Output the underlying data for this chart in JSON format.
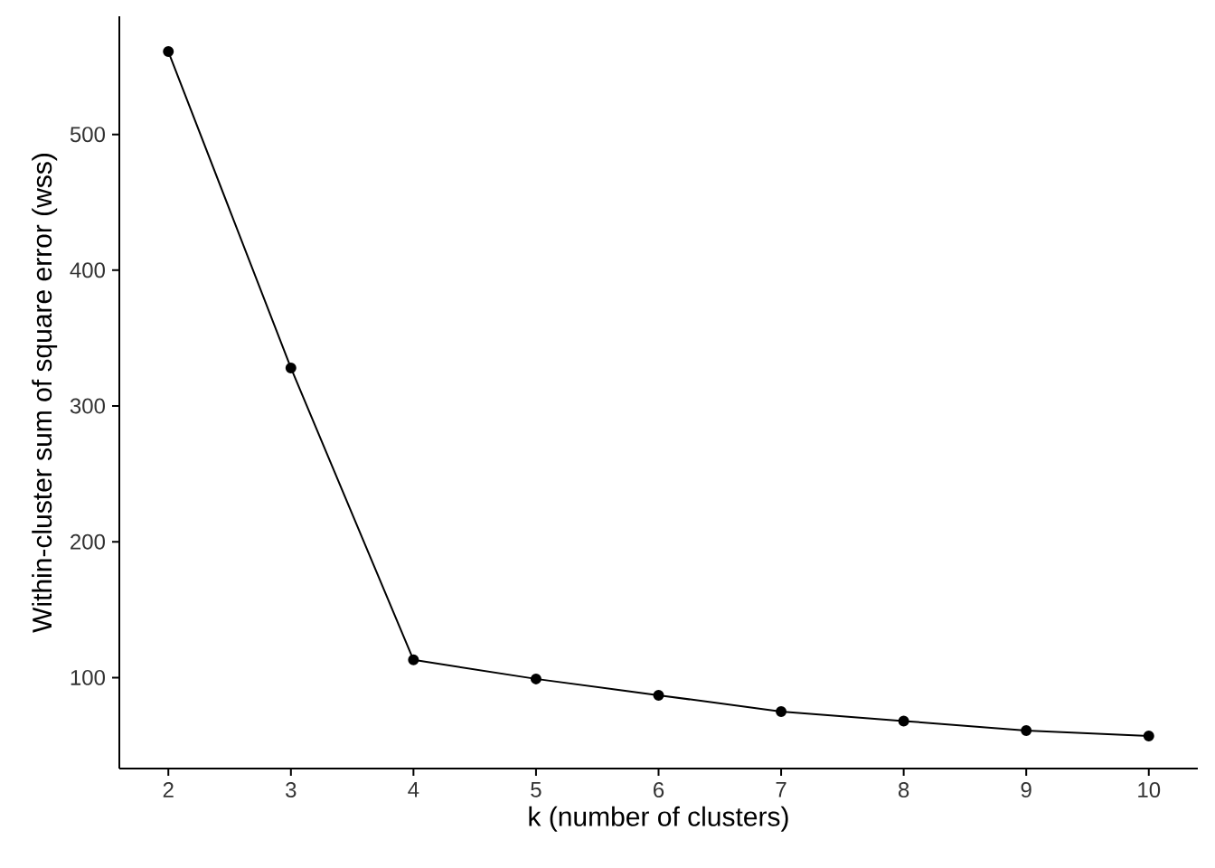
{
  "chart_data": {
    "type": "line",
    "xlabel": "k (number of clusters)",
    "ylabel": "Within-cluster sum of square error (wss)",
    "x": [
      2,
      3,
      4,
      5,
      6,
      7,
      8,
      9,
      10
    ],
    "series": [
      {
        "color": "#000000",
        "values": [
          561,
          328,
          113,
          99,
          87,
          75,
          68,
          61,
          57
        ]
      }
    ],
    "xlim": [
      1.6,
      10.4
    ],
    "ylim": [
      33,
      587
    ],
    "xticks": [
      2,
      3,
      4,
      5,
      6,
      7,
      8,
      9,
      10
    ],
    "yticks": [
      100,
      200,
      300,
      400,
      500
    ],
    "marker": "circle",
    "line_style": "solid"
  }
}
